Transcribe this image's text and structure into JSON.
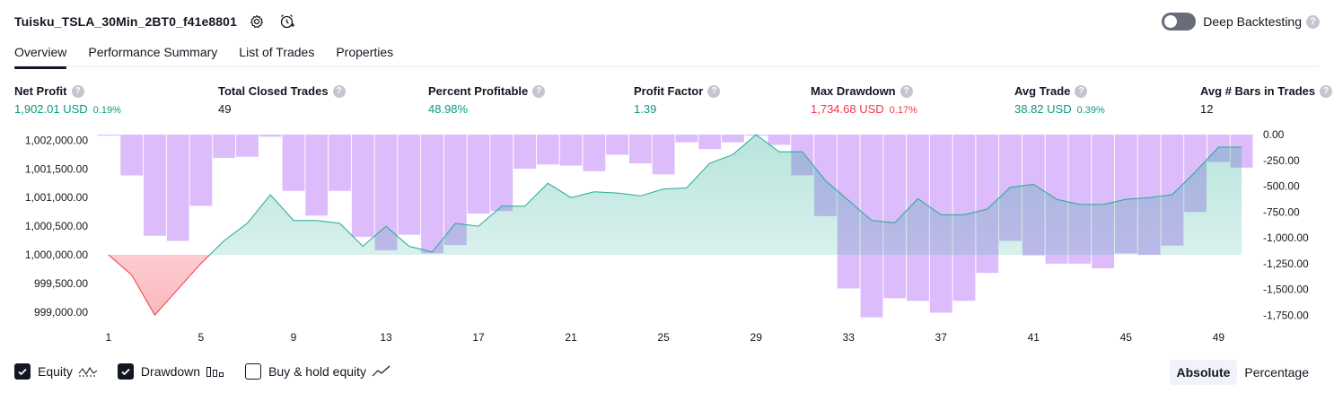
{
  "header": {
    "title": "Tuisku_TSLA_30Min_2BT0_f41e8801",
    "deep_backtesting_label": "Deep Backtesting",
    "deep_backtesting_enabled": false
  },
  "tabs": [
    {
      "label": "Overview",
      "active": true
    },
    {
      "label": "Performance Summary",
      "active": false
    },
    {
      "label": "List of Trades",
      "active": false
    },
    {
      "label": "Properties",
      "active": false
    }
  ],
  "metrics": [
    {
      "label": "Net Profit",
      "value": "1,902.01 USD",
      "pct": "0.19%",
      "tone": "pos"
    },
    {
      "label": "Total Closed Trades",
      "value": "49",
      "pct": "",
      "tone": "neu"
    },
    {
      "label": "Percent Profitable",
      "value": "48.98%",
      "pct": "",
      "tone": "pos"
    },
    {
      "label": "Profit Factor",
      "value": "1.39",
      "pct": "",
      "tone": "pos"
    },
    {
      "label": "Max Drawdown",
      "value": "1,734.68 USD",
      "pct": "0.17%",
      "tone": "neg"
    },
    {
      "label": "Avg Trade",
      "value": "38.82 USD",
      "pct": "0.39%",
      "tone": "pos"
    },
    {
      "label": "Avg # Bars in Trades",
      "value": "12",
      "pct": "",
      "tone": "neu"
    }
  ],
  "chart_data": {
    "type": "area",
    "x_ticks": [
      1,
      5,
      9,
      13,
      17,
      21,
      25,
      29,
      33,
      37,
      41,
      45,
      49
    ],
    "y_left_ticks": [
      "1,002,000.00",
      "1,001,500.00",
      "1,001,000.00",
      "1,000,500.00",
      "1,000,000.00",
      "999,500.00",
      "999,000.00"
    ],
    "y_left_range": [
      998810,
      1002100
    ],
    "y_right_ticks": [
      "0.00",
      "-250.00",
      "-500.00",
      "-750.00",
      "-1,000.00",
      "-1,250.00",
      "-1,500.00",
      "-1,750.00"
    ],
    "y_right_range": [
      -1825,
      0
    ],
    "equity_baseline": 1000000,
    "series": [
      {
        "name": "Equity",
        "x": [
          1,
          2,
          3,
          4,
          5,
          6,
          7,
          8,
          9,
          10,
          11,
          12,
          13,
          14,
          15,
          16,
          17,
          18,
          19,
          20,
          21,
          22,
          23,
          24,
          25,
          26,
          27,
          28,
          29,
          30,
          31,
          32,
          33,
          34,
          35,
          36,
          37,
          38,
          39,
          40,
          41,
          42,
          43,
          44,
          45,
          46,
          47,
          48,
          49,
          50
        ],
        "values": [
          1000000,
          999650,
          998950,
          999400,
          999850,
          1000250,
          1000550,
          1001050,
          1000600,
          1000600,
          1000550,
          1000150,
          1000500,
          1000150,
          1000050,
          1000550,
          1000500,
          1000850,
          1000850,
          1001250,
          1001000,
          1001100,
          1001080,
          1001030,
          1001150,
          1001170,
          1001600,
          1001750,
          1002100,
          1001800,
          1001800,
          1001300,
          1000950,
          1000600,
          1000560,
          1000980,
          1000700,
          1000700,
          1000800,
          1001180,
          1001230,
          1000970,
          1000880,
          1000880,
          1000970,
          1001000,
          1001050,
          1001450,
          1001880,
          1001880
        ]
      },
      {
        "name": "Drawdown",
        "values": [
          -10,
          -395,
          -980,
          -1030,
          -690,
          -225,
          -215,
          -20,
          -545,
          -785,
          -545,
          -990,
          -1120,
          -970,
          -1150,
          -1070,
          -765,
          -740,
          -330,
          -290,
          -300,
          -355,
          -195,
          -280,
          -385,
          -75,
          -140,
          -75,
          -10,
          -100,
          -395,
          -790,
          -1490,
          -1770,
          -1585,
          -1610,
          -1725,
          -1610,
          -1340,
          -1030,
          -1170,
          -1250,
          -1250,
          -1295,
          -1150,
          -1165,
          -1075,
          -750,
          -265,
          -320
        ]
      },
      {
        "name": "Buy & hold equity",
        "values": []
      }
    ]
  },
  "legend": [
    {
      "label": "Equity",
      "checked": true,
      "icon": "equity-line-icon"
    },
    {
      "label": "Drawdown",
      "checked": true,
      "icon": "drawdown-bars-icon"
    },
    {
      "label": "Buy & hold equity",
      "checked": false,
      "icon": "buy-hold-line-icon"
    }
  ],
  "modes": [
    {
      "label": "Absolute",
      "active": true
    },
    {
      "label": "Percentage",
      "active": false
    }
  ],
  "colors": {
    "positive": "#089981",
    "negative": "#f23645",
    "drawdown_bar": "#d6b0fa",
    "equity_fill_top": "#22ab94",
    "equity_line": "#22ab94",
    "equity_below_line": "#f23645"
  }
}
